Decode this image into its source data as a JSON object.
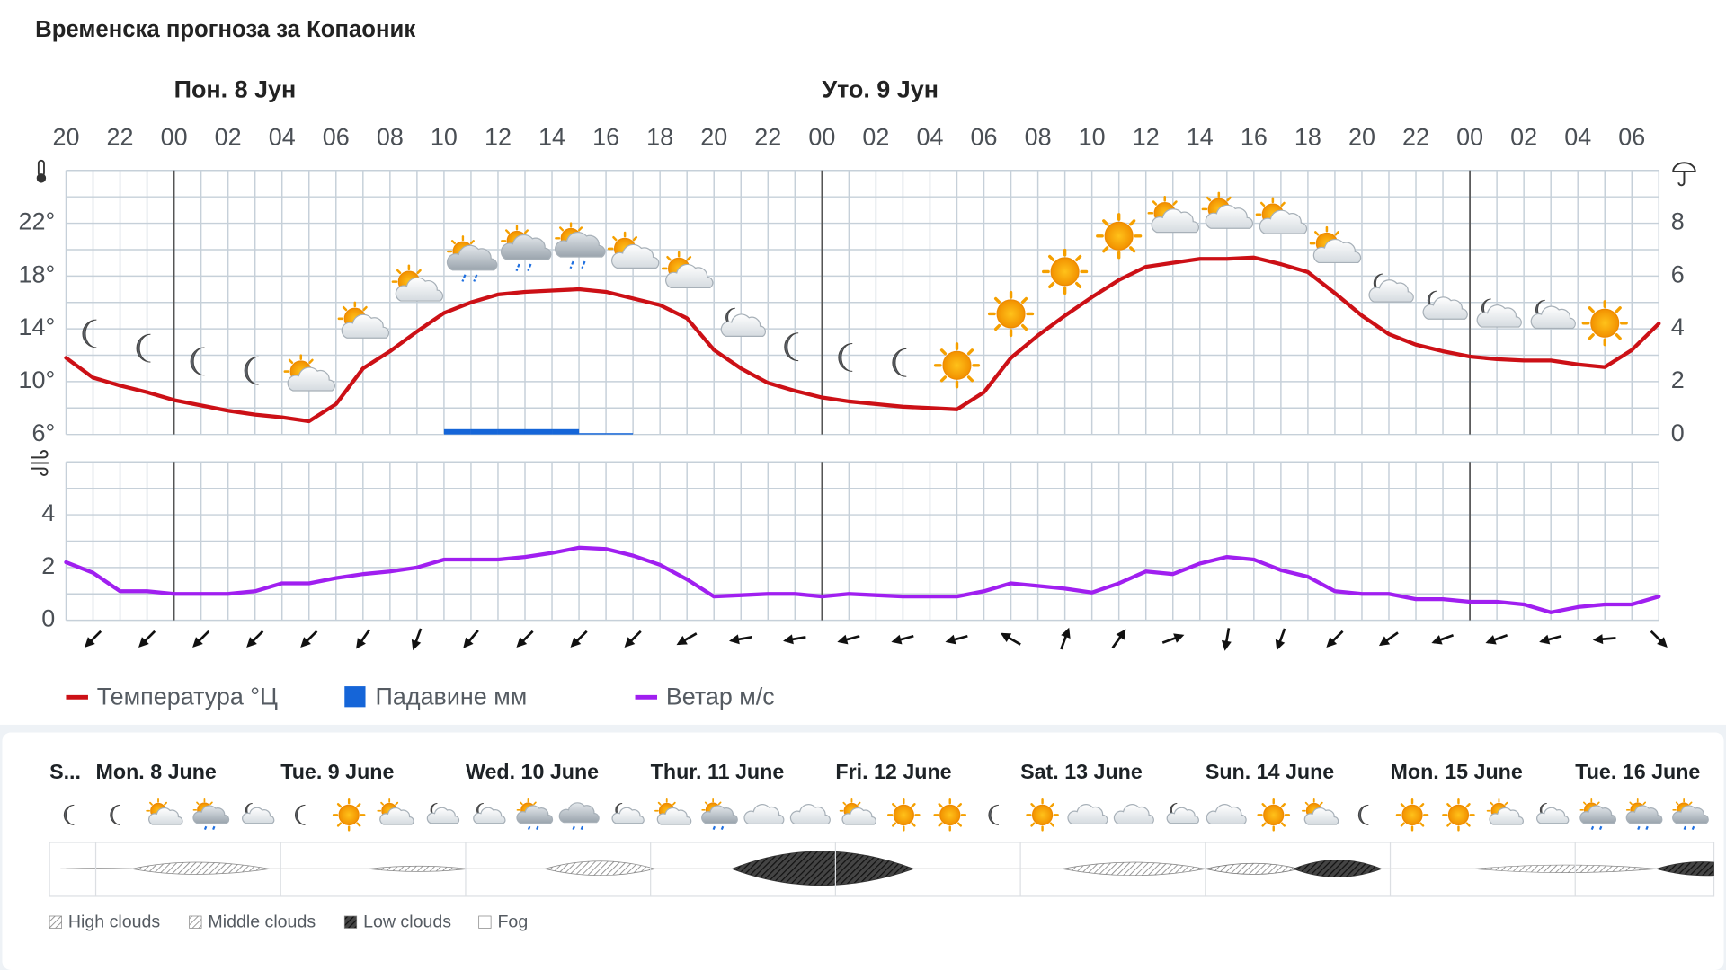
{
  "chart_data": [
    {
      "type": "line",
      "title": "Временска прогноза за Копаоник",
      "day_labels": [
        "Пон. 8 Јун",
        "Уто. 9 Јун"
      ],
      "categories": [
        "20",
        null,
        "22",
        null,
        "00",
        null,
        "02",
        null,
        "04",
        null,
        "06",
        null,
        "08",
        null,
        "10",
        null,
        "12",
        null,
        "14",
        null,
        "16",
        null,
        "18",
        null,
        "20",
        null,
        "22",
        null,
        "00",
        null,
        "02",
        null,
        "04",
        null,
        "06",
        null,
        "08",
        null,
        "10",
        null,
        "12",
        null,
        "14",
        null,
        "16",
        null,
        "18",
        null,
        "20",
        null,
        "22",
        null,
        "00",
        null,
        "02",
        null,
        "04",
        null,
        "06",
        null
      ],
      "series": [
        {
          "name": "Температура °Ц",
          "type": "line",
          "color": "#cc1016",
          "values": [
            11.8,
            10.3,
            9.7,
            9.2,
            8.6,
            8.2,
            7.8,
            7.5,
            7.3,
            7.0,
            8.3,
            11.0,
            12.3,
            13.8,
            15.2,
            16.0,
            16.6,
            16.8,
            16.9,
            17.0,
            16.8,
            16.3,
            15.8,
            14.8,
            12.4,
            11.0,
            9.9,
            9.3,
            8.8,
            8.5,
            8.3,
            8.1,
            8.0,
            7.9,
            9.2,
            11.8,
            13.5,
            15.0,
            16.4,
            17.7,
            18.7,
            19.0,
            19.3,
            19.3,
            19.4,
            18.9,
            18.3,
            16.7,
            15.0,
            13.6,
            12.8,
            12.3,
            11.9,
            11.7,
            11.6,
            11.6,
            11.3,
            11.1,
            12.4,
            14.4
          ]
        },
        {
          "name": "Падавине мм",
          "type": "bar",
          "axis": "y2",
          "color": "#1565d8",
          "values": [
            0,
            0,
            0,
            0,
            0,
            0,
            0,
            0,
            0,
            0,
            0,
            0,
            0,
            0,
            0.2,
            0.2,
            0.2,
            0.2,
            0.2,
            0.05,
            0.05,
            0,
            0,
            0,
            0,
            0,
            0,
            0,
            0,
            0,
            0,
            0,
            0,
            0,
            0,
            0,
            0,
            0,
            0,
            0,
            0,
            0,
            0,
            0,
            0,
            0,
            0,
            0,
            0,
            0,
            0,
            0,
            0,
            0,
            0,
            0,
            0,
            0,
            0,
            0
          ]
        }
      ],
      "ylim": [
        6,
        26
      ],
      "yticks": [
        {
          "value": 6,
          "label": "6°"
        },
        {
          "value": 10,
          "label": "10°"
        },
        {
          "value": 14,
          "label": "14°"
        },
        {
          "value": 18,
          "label": "18°"
        },
        {
          "value": 22,
          "label": "22°"
        }
      ],
      "y2lim": [
        0,
        10
      ],
      "y2ticks": [
        0,
        2,
        4,
        6,
        8
      ],
      "grid": true
    },
    {
      "type": "line",
      "series": [
        {
          "name": "Ветар м/с",
          "type": "line",
          "color": "#a01ff0",
          "values": [
            2.2,
            1.8,
            1.1,
            1.1,
            1.0,
            1.0,
            1.0,
            1.1,
            1.4,
            1.4,
            1.6,
            1.75,
            1.85,
            2.0,
            2.3,
            2.3,
            2.3,
            2.4,
            2.55,
            2.75,
            2.7,
            2.45,
            2.1,
            1.55,
            0.9,
            0.95,
            1.0,
            1.0,
            0.9,
            1.0,
            0.95,
            0.9,
            0.9,
            0.9,
            1.1,
            1.4,
            1.3,
            1.2,
            1.05,
            1.4,
            1.85,
            1.75,
            2.15,
            2.4,
            2.3,
            1.9,
            1.65,
            1.1,
            1.0,
            1.0,
            0.8,
            0.8,
            0.7,
            0.7,
            0.6,
            0.3,
            0.5,
            0.6,
            0.6,
            0.9
          ]
        }
      ],
      "wind_direction": [
        225,
        225,
        225,
        225,
        225,
        215,
        200,
        220,
        225,
        225,
        225,
        240,
        260,
        260,
        255,
        255,
        255,
        300,
        20,
        35,
        70,
        190,
        200,
        225,
        235,
        250,
        250,
        255,
        265,
        135
      ],
      "ylim": [
        0,
        6
      ],
      "yticks": [
        0,
        2,
        4
      ],
      "grid": true
    }
  ],
  "forecast": {
    "days": [
      "S...",
      "Mon. 8 June",
      "Tue. 9 June",
      "Wed. 10 June",
      "Thur. 11 June",
      "Fri. 12 June",
      "Sat. 13 June",
      "Sun. 14 June",
      "Mon. 15 June",
      "Tue. 16 June"
    ],
    "legend": [
      "High clouds",
      "Middle clouds",
      "Low clouds",
      "Fog"
    ]
  }
}
